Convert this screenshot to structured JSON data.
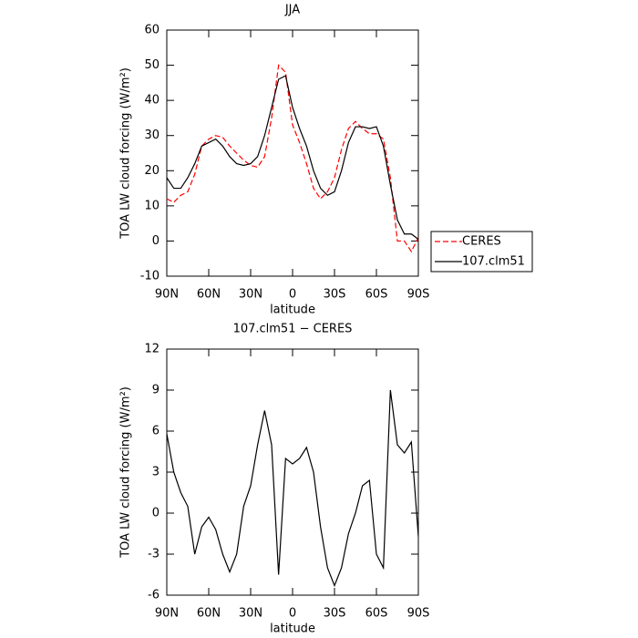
{
  "chart_data": [
    {
      "type": "line",
      "title": "JJA",
      "x_label": "latitude",
      "y_label": "TOA LW cloud forcing (W/m²)",
      "x": [
        90,
        85,
        80,
        75,
        70,
        65,
        60,
        55,
        50,
        45,
        40,
        35,
        30,
        25,
        20,
        15,
        10,
        5,
        0,
        -5,
        -10,
        -15,
        -20,
        -25,
        -30,
        -35,
        -40,
        -45,
        -50,
        -55,
        -60,
        -65,
        -70,
        -75,
        -80,
        -85,
        -90
      ],
      "series": [
        {
          "name": "CERES",
          "color": "#ff0000",
          "line_style": "dashed",
          "values": [
            12,
            11,
            13,
            14,
            19,
            27,
            29,
            30,
            29.5,
            27,
            25,
            23,
            21.5,
            21,
            24,
            35,
            50,
            48,
            33,
            28,
            22,
            15,
            12,
            14,
            18,
            26,
            32,
            34,
            32,
            30.5,
            30.5,
            29,
            18,
            0,
            0,
            -3,
            1
          ]
        },
        {
          "name": "107.clm51",
          "color": "#000000",
          "line_style": "solid",
          "values": [
            18,
            15,
            15,
            18,
            22,
            27,
            28,
            29,
            27,
            24,
            22,
            21.5,
            22,
            24,
            30,
            38,
            46,
            47,
            38,
            32,
            27,
            20,
            15,
            13,
            14,
            20,
            28,
            32.5,
            32.5,
            32,
            32.5,
            27,
            16,
            6,
            2,
            2,
            0.5
          ]
        }
      ],
      "xlim": [
        90,
        -90
      ],
      "xticks": [
        {
          "value": 90,
          "label": "90N"
        },
        {
          "value": 60,
          "label": "60N"
        },
        {
          "value": 30,
          "label": "30N"
        },
        0,
        {
          "value": -30,
          "label": "30S"
        },
        {
          "value": -60,
          "label": "60S"
        },
        {
          "value": -90,
          "label": "90S"
        }
      ],
      "ylim": [
        -10,
        60
      ],
      "yticks": [
        -10,
        0,
        10,
        20,
        30,
        40,
        50,
        60
      ],
      "legend": "right"
    },
    {
      "type": "line",
      "title": "107.clm51 − CERES",
      "x_label": "latitude",
      "y_label": "TOA LW cloud forcing (W/m²)",
      "x": [
        90,
        85,
        80,
        75,
        70,
        65,
        60,
        55,
        50,
        45,
        40,
        35,
        30,
        25,
        20,
        15,
        10,
        5,
        0,
        -5,
        -10,
        -15,
        -20,
        -25,
        -30,
        -35,
        -40,
        -45,
        -50,
        -55,
        -60,
        -65,
        -70,
        -75,
        -80,
        -85,
        -90
      ],
      "values": [
        5.8,
        3,
        1.5,
        0.5,
        -3,
        -1,
        -0.3,
        -1.2,
        -3,
        -4.3,
        -3,
        0.5,
        2,
        5,
        7.5,
        5,
        -4.5,
        4,
        3.6,
        4,
        4.8,
        3,
        -1,
        -4,
        -5.3,
        -4,
        -1.5,
        0,
        2,
        2.4,
        -3,
        -4,
        9,
        5,
        4.4,
        5.2,
        -1.7
      ],
      "color": "#000000",
      "xlim": [
        90,
        -90
      ],
      "xticks": [
        {
          "value": 90,
          "label": "90N"
        },
        {
          "value": 60,
          "label": "60N"
        },
        {
          "value": 30,
          "label": "30N"
        },
        0,
        {
          "value": -30,
          "label": "30S"
        },
        {
          "value": -60,
          "label": "60S"
        },
        {
          "value": -90,
          "label": "90S"
        }
      ],
      "ylim": [
        -6,
        12
      ],
      "yticks": [
        -6,
        -3,
        0,
        3,
        6,
        9,
        12
      ]
    }
  ]
}
